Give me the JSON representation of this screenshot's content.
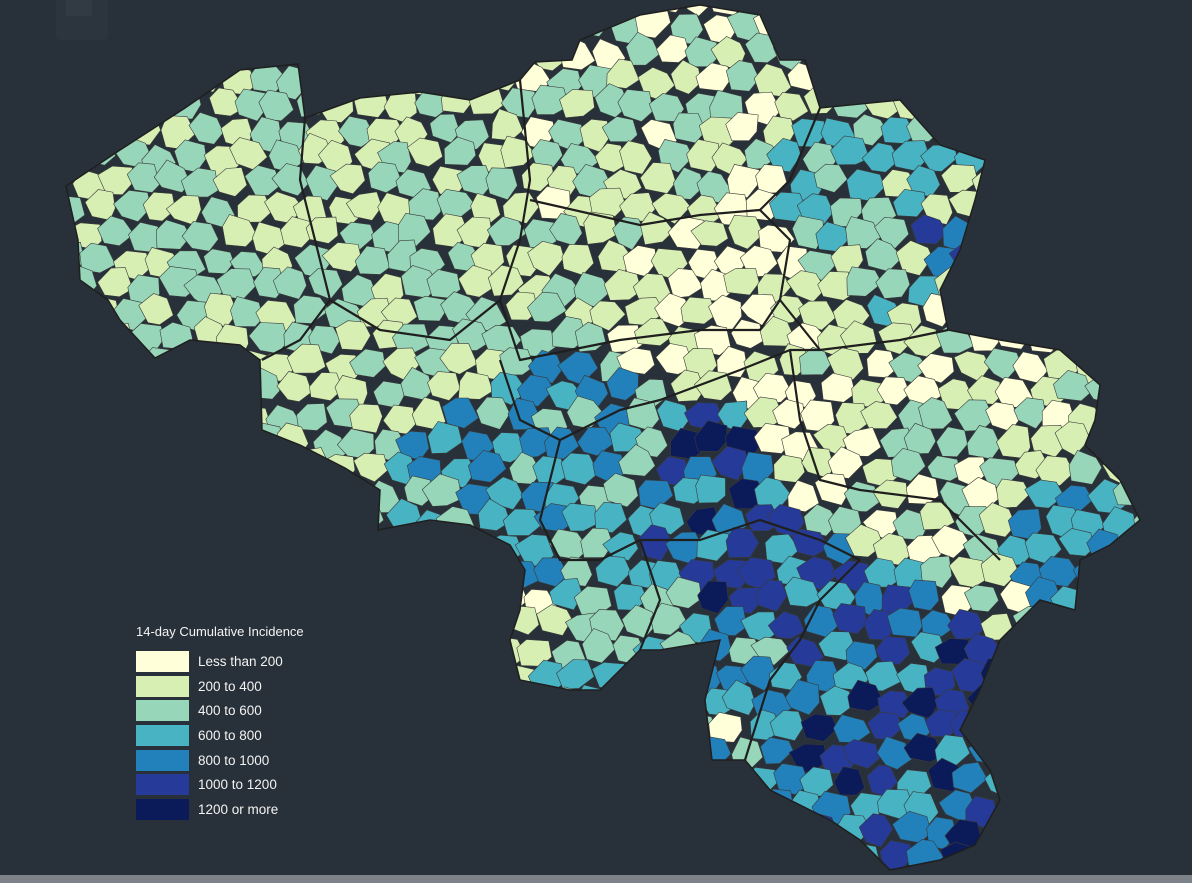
{
  "legend": {
    "title": "14-day Cumulative Incidence",
    "items": [
      {
        "label": "Less than 200",
        "color": "#ffffd9"
      },
      {
        "label": "200 to 400",
        "color": "#d8efb4"
      },
      {
        "label": "400 to 600",
        "color": "#97d6b9"
      },
      {
        "label": "600 to 800",
        "color": "#48b3c3"
      },
      {
        "label": "800 to 1000",
        "color": "#2280bb"
      },
      {
        "label": "1000 to 1200",
        "color": "#253a99"
      },
      {
        "label": "1200 or more",
        "color": "#0b1a59"
      }
    ]
  },
  "colors": {
    "background": "#283139",
    "border_light": "#3a3a3a",
    "border_province": "#1f1f1f"
  }
}
